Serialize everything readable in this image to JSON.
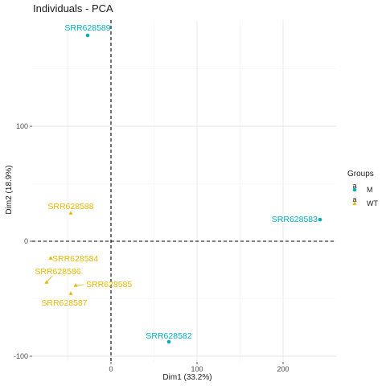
{
  "chart_data": {
    "type": "scatter",
    "title": "Individuals - PCA",
    "xlabel": "Dim1 (33.2%)",
    "ylabel": "Dim2 (18.9%)",
    "xlim": [
      -45,
      250
    ],
    "ylim": [
      -105,
      153
    ],
    "xticks": [
      0,
      100,
      200
    ],
    "yticks": [
      -100,
      0,
      100
    ],
    "grid": true,
    "reference_lines": {
      "x": 0,
      "y": 0,
      "style": "dashed"
    },
    "legend": {
      "title": "Groups",
      "position": "right",
      "entries": [
        {
          "label": "M",
          "color": "#00AFBB"
        },
        {
          "label": "WT",
          "color": "#E7B800"
        }
      ]
    },
    "series": [
      {
        "name": "M",
        "color": "#00AFBB",
        "points": [
          {
            "label": "SRR628589",
            "x": -27,
            "y": 179
          },
          {
            "label": "SRR628583",
            "x": 242,
            "y": 19
          },
          {
            "label": "SRR628582",
            "x": 67,
            "y": -87
          }
        ]
      },
      {
        "name": "WT",
        "color": "#E7B800",
        "points": [
          {
            "label": "SRR628588",
            "x": -47,
            "y": 25
          },
          {
            "label": "SRR628584",
            "x": -70,
            "y": -15
          },
          {
            "label": "SRR628586",
            "x": -73,
            "y": -35
          },
          {
            "label": "SRR628585",
            "x": -40,
            "y": -38
          },
          {
            "label": "SRR628587",
            "x": -47,
            "y": -45
          }
        ]
      }
    ]
  }
}
